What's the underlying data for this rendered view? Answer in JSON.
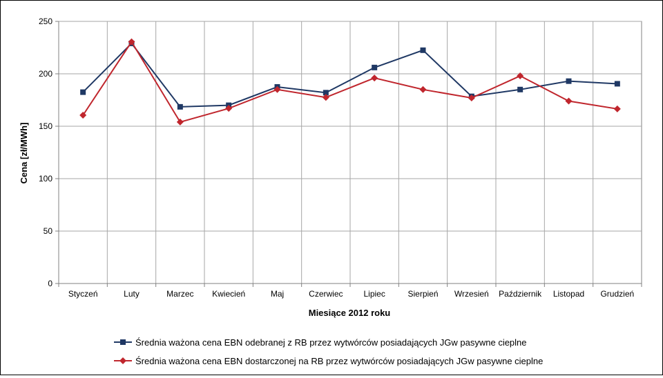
{
  "chart_data": {
    "type": "line",
    "categories": [
      "Styczeń",
      "Luty",
      "Marzec",
      "Kwiecień",
      "Maj",
      "Czerwiec",
      "Lipiec",
      "Sierpień",
      "Wrzesień",
      "Październik",
      "Listopad",
      "Grudzień"
    ],
    "series": [
      {
        "name": "Średnia ważona cena EBN odebranej z RB przez wytwórców posiadających JGw pasywne cieplne",
        "values": [
          182.5,
          229,
          168.5,
          170,
          187.5,
          182,
          206,
          222.5,
          178.5,
          185,
          193,
          190.5
        ],
        "color": "#1f3864",
        "marker": "square"
      },
      {
        "name": "Średnia ważona cena EBN dostarczonej na RB przez wytwórców posiadających JGw pasywne cieplne",
        "values": [
          160.5,
          230.5,
          154,
          167,
          185,
          177.5,
          196,
          185,
          177,
          198,
          174,
          166.5
        ],
        "color": "#c0262d",
        "marker": "diamond"
      }
    ],
    "xlabel": "Miesiące 2012 roku",
    "ylabel": "Cena [zł/MWh]",
    "ylim": [
      0,
      250
    ],
    "yticks": [
      0,
      50,
      100,
      150,
      200,
      250
    ],
    "grid": true,
    "legend": "bottom"
  }
}
